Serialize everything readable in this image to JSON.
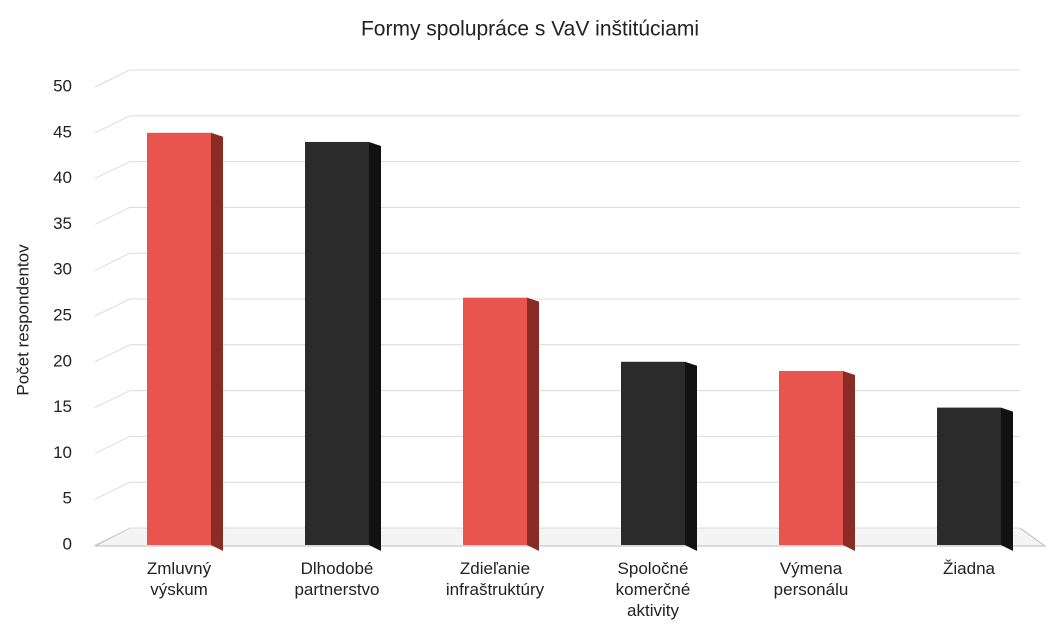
{
  "chart_data": {
    "type": "bar",
    "title": "Formy spolupráce s VaV inštitúciami",
    "y_label": "Počet respondentov",
    "categories": [
      "Zmluvný výskum",
      "Dlhodobé partnerstvo",
      "Zdieľanie infraštruktúry",
      "Spoločné komerčné aktivity",
      "Výmena personálu",
      "Žiadna"
    ],
    "values": [
      45,
      44,
      27,
      20,
      19,
      15
    ],
    "colors": [
      "#e8554e",
      "#2b2b2b",
      "#e8554e",
      "#2b2b2b",
      "#e8554e",
      "#2b2b2b"
    ],
    "ylim": [
      0,
      50
    ],
    "yticks": [
      0,
      5,
      10,
      15,
      20,
      25,
      30,
      35,
      40,
      45,
      50
    ],
    "grid": true
  }
}
